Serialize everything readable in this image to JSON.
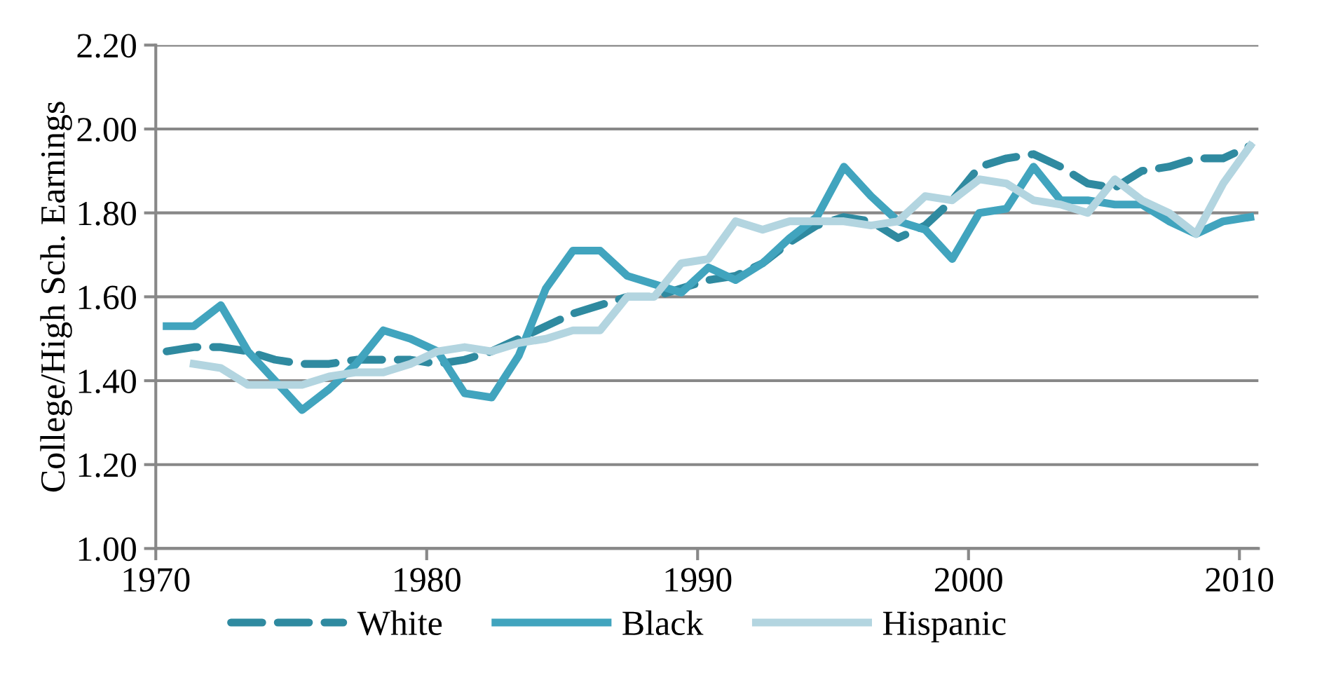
{
  "chart_data": {
    "type": "line",
    "ylabel": "College/High Sch. Earnings",
    "xlim": [
      1970,
      2010.7
    ],
    "xticks": [
      1970,
      1980,
      1990,
      2000,
      2010
    ],
    "ylim": [
      1.0,
      2.2
    ],
    "yticks": [
      {
        "value": 1.0,
        "label": "1.00"
      },
      {
        "value": 1.2,
        "label": "1.20"
      },
      {
        "value": 1.4,
        "label": "1.40"
      },
      {
        "value": 1.6,
        "label": "1.60"
      },
      {
        "value": 1.8,
        "label": "1.80"
      },
      {
        "value": 2.0,
        "label": "2.00"
      },
      {
        "value": 2.2,
        "label": "2.20"
      }
    ],
    "grid": "y",
    "legend": "bottom",
    "marker": "none",
    "series": [
      {
        "name": "White",
        "color": "#2f8aa0",
        "line_style": "dashed",
        "x": [
          1970.4,
          1971.4,
          1972.4,
          1973.4,
          1974.4,
          1975.4,
          1976.4,
          1977.4,
          1978.4,
          1979.4,
          1980.4,
          1981.4,
          1982.4,
          1983.4,
          1984.4,
          1985.4,
          1986.4,
          1987.4,
          1988.4,
          1989.4,
          1990.4,
          1991.4,
          1992.4,
          1993.4,
          1994.4,
          1995.4,
          1996.4,
          1997.4,
          1998.4,
          1999.4,
          2000.4,
          2001.4,
          2002.4,
          2003.4,
          2004.4,
          2005.4,
          2006.4,
          2007.4,
          2008.4,
          2009.4,
          2010.4
        ],
        "values": [
          1.47,
          1.48,
          1.48,
          1.47,
          1.45,
          1.44,
          1.44,
          1.45,
          1.45,
          1.45,
          1.44,
          1.45,
          1.47,
          1.5,
          1.53,
          1.56,
          1.58,
          1.6,
          1.6,
          1.62,
          1.64,
          1.65,
          1.68,
          1.73,
          1.77,
          1.79,
          1.78,
          1.74,
          1.77,
          1.83,
          1.91,
          1.93,
          1.94,
          1.91,
          1.87,
          1.86,
          1.9,
          1.91,
          1.93,
          1.93,
          1.96
        ]
      },
      {
        "name": "Black",
        "color": "#41a4be",
        "line_style": "solid",
        "x": [
          1970.4,
          1971.4,
          1972.4,
          1973.4,
          1974.4,
          1975.4,
          1976.4,
          1977.4,
          1978.4,
          1979.4,
          1980.4,
          1981.4,
          1982.4,
          1983.4,
          1984.4,
          1985.4,
          1986.4,
          1987.4,
          1988.4,
          1989.4,
          1990.4,
          1991.4,
          1992.4,
          1993.4,
          1994.4,
          1995.4,
          1996.4,
          1997.4,
          1998.4,
          1999.4,
          2000.4,
          2001.4,
          2002.4,
          2003.4,
          2004.4,
          2005.4,
          2006.4,
          2007.4,
          2008.4,
          2009.4,
          2010.4
        ],
        "values": [
          1.53,
          1.53,
          1.58,
          1.47,
          1.4,
          1.33,
          1.38,
          1.44,
          1.52,
          1.5,
          1.47,
          1.37,
          1.36,
          1.46,
          1.62,
          1.71,
          1.71,
          1.65,
          1.63,
          1.61,
          1.67,
          1.64,
          1.68,
          1.74,
          1.79,
          1.91,
          1.84,
          1.78,
          1.76,
          1.69,
          1.8,
          1.81,
          1.91,
          1.83,
          1.83,
          1.82,
          1.82,
          1.78,
          1.75,
          1.78,
          1.79
        ]
      },
      {
        "name": "Hispanic",
        "color": "#b3d5e0",
        "line_style": "solid",
        "x": [
          1971.4,
          1972.4,
          1973.4,
          1974.4,
          1975.4,
          1976.4,
          1977.4,
          1978.4,
          1979.4,
          1980.4,
          1981.4,
          1982.4,
          1983.4,
          1984.4,
          1985.4,
          1986.4,
          1987.4,
          1988.4,
          1989.4,
          1990.4,
          1991.4,
          1992.4,
          1993.4,
          1994.4,
          1995.4,
          1996.4,
          1997.4,
          1998.4,
          1999.4,
          2000.4,
          2001.4,
          2002.4,
          2003.4,
          2004.4,
          2005.4,
          2006.4,
          2007.4,
          2008.4,
          2009.4,
          2010.4
        ],
        "values": [
          1.44,
          1.43,
          1.39,
          1.39,
          1.39,
          1.41,
          1.42,
          1.42,
          1.44,
          1.47,
          1.48,
          1.47,
          1.49,
          1.5,
          1.52,
          1.52,
          1.6,
          1.6,
          1.68,
          1.69,
          1.78,
          1.76,
          1.78,
          1.78,
          1.78,
          1.77,
          1.78,
          1.84,
          1.83,
          1.88,
          1.87,
          1.83,
          1.82,
          1.8,
          1.88,
          1.83,
          1.8,
          1.75,
          1.87,
          1.96
        ]
      }
    ]
  }
}
